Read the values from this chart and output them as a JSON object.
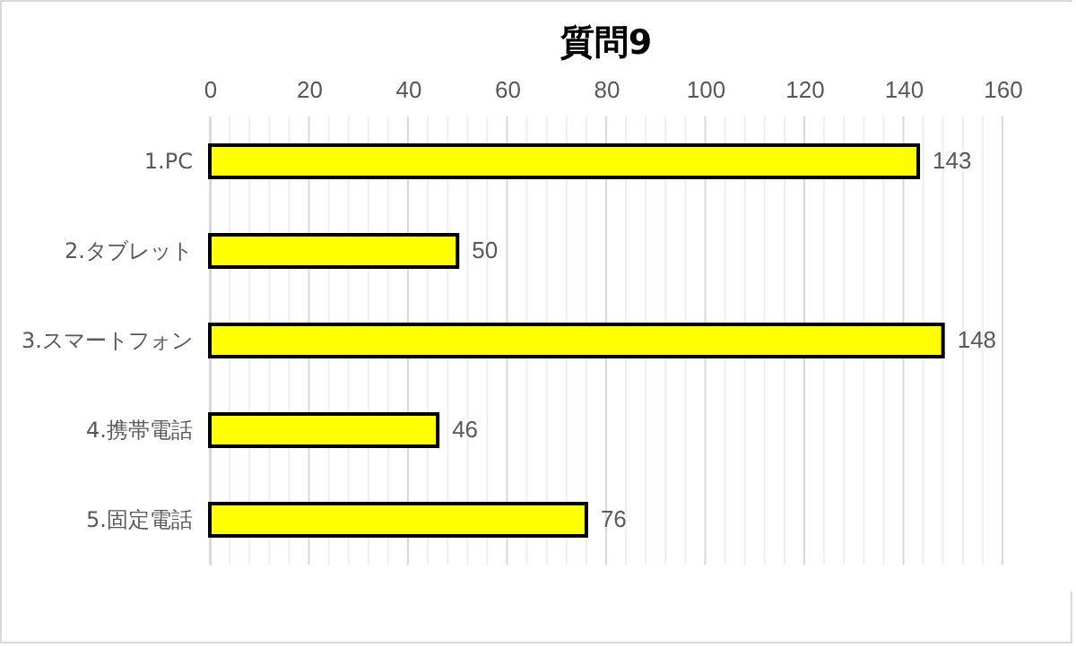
{
  "chart_data": {
    "type": "bar",
    "orientation": "horizontal",
    "title": "質問9",
    "categories": [
      "1.PC",
      "2.タブレット",
      "3.スマートフォン",
      "4.携帯電話",
      "5.固定電話"
    ],
    "values": [
      143,
      50,
      148,
      46,
      76
    ],
    "color": "#ffff00",
    "data_labels": true,
    "grid": "x",
    "xlim": [
      0,
      160
    ],
    "xticks": [
      0,
      {
        "value": 4,
        "label": null
      },
      {
        "value": 8,
        "label": null
      },
      {
        "value": 12,
        "label": null
      },
      {
        "value": 16,
        "label": null
      },
      20,
      {
        "value": 24,
        "label": null
      },
      {
        "value": 28,
        "label": null
      },
      {
        "value": 32,
        "label": null
      },
      {
        "value": 36,
        "label": null
      },
      40,
      {
        "value": 44,
        "label": null
      },
      {
        "value": 48,
        "label": null
      },
      {
        "value": 52,
        "label": null
      },
      {
        "value": 56,
        "label": null
      },
      60,
      {
        "value": 64,
        "label": null
      },
      {
        "value": 68,
        "label": null
      },
      {
        "value": 72,
        "label": null
      },
      {
        "value": 76,
        "label": null
      },
      80,
      {
        "value": 84,
        "label": null
      },
      {
        "value": 88,
        "label": null
      },
      {
        "value": 92,
        "label": null
      },
      {
        "value": 96,
        "label": null
      },
      100,
      {
        "value": 104,
        "label": null
      },
      {
        "value": 108,
        "label": null
      },
      {
        "value": 112,
        "label": null
      },
      {
        "value": 116,
        "label": null
      },
      120,
      {
        "value": 124,
        "label": null
      },
      {
        "value": 128,
        "label": null
      },
      {
        "value": 132,
        "label": null
      },
      {
        "value": 136,
        "label": null
      },
      140,
      {
        "value": 144,
        "label": null
      },
      {
        "value": 148,
        "label": null
      },
      {
        "value": 152,
        "label": null
      },
      {
        "value": 156,
        "label": null
      },
      160
    ]
  }
}
